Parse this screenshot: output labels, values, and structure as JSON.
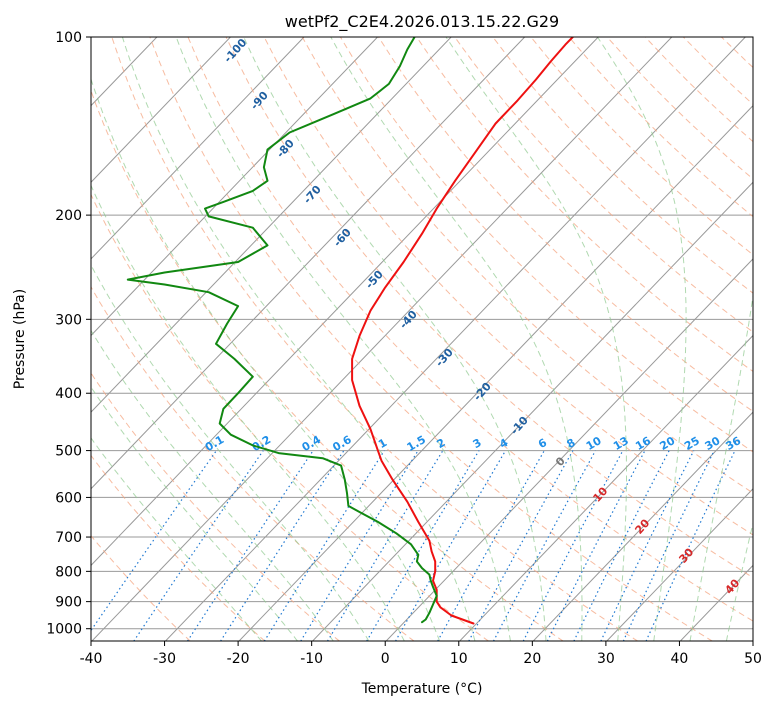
{
  "chart_data": {
    "type": "line",
    "title": "wetPf2_C2E4.2026.013.15.22.G29",
    "xlabel": "Temperature (°C)",
    "ylabel": "Pressure (hPa)",
    "x_scale": "linear",
    "y_scale": "log (inverted)",
    "xlim": [
      -40,
      50
    ],
    "ylim": [
      1050,
      100
    ],
    "grid": true,
    "x_ticks": [
      -40,
      -30,
      -20,
      -10,
      0,
      10,
      20,
      30,
      40,
      50
    ],
    "y_ticks": [
      1000,
      900,
      800,
      700,
      600,
      500,
      400,
      300,
      200,
      100
    ],
    "dry_adiabat_labels": [
      "-100",
      "-90",
      "-80",
      "-70",
      "-60",
      "-50",
      "-40",
      "-30",
      "-20",
      "-10"
    ],
    "mixing_ratio_labels": [
      "0.1",
      "0.2",
      "0.4",
      "0.6",
      "1",
      "1.5",
      "2",
      "3",
      "4",
      "6",
      "8",
      "10",
      "13",
      "16",
      "20",
      "25",
      "30",
      "36"
    ],
    "moist_adiabat_labels": [
      "0",
      "10",
      "20",
      "30",
      "40"
    ],
    "colors": {
      "temperature": "#ee1111",
      "dewpoint": "#118811",
      "isotherm": "#999999",
      "dry_adiabat": "#f4a582",
      "moist_adiabat": "#8fc98f",
      "mixing_ratio": "#1f78d1",
      "dry_label": "#1f5fa0",
      "mixing_label": "#1f8fe8",
      "moist_label_cold": "#777777",
      "moist_label_warm": "#d62728"
    },
    "series": [
      {
        "key": "temperature",
        "points": [
          [
            12.0,
            980
          ],
          [
            9.0,
            950
          ],
          [
            7.5,
            920
          ],
          [
            7.0,
            900
          ],
          [
            7.0,
            860
          ],
          [
            6.5,
            830
          ],
          [
            6.8,
            800
          ],
          [
            6.8,
            770
          ],
          [
            6.3,
            740
          ],
          [
            6.0,
            710
          ],
          [
            4.5,
            660
          ],
          [
            3.0,
            610
          ],
          [
            1.0,
            560
          ],
          [
            -0.5,
            520
          ],
          [
            -1.0,
            500
          ],
          [
            -2.0,
            460
          ],
          [
            -3.5,
            420
          ],
          [
            -4.5,
            380
          ],
          [
            -4.5,
            350
          ],
          [
            -3.5,
            320
          ],
          [
            -2.0,
            290
          ],
          [
            0.0,
            265
          ],
          [
            2.5,
            240
          ],
          [
            5.0,
            215
          ],
          [
            7.0,
            195
          ],
          [
            9.5,
            175
          ],
          [
            12.5,
            155
          ],
          [
            15.0,
            140
          ],
          [
            18.0,
            128
          ],
          [
            20.5,
            118
          ],
          [
            22.5,
            110
          ],
          [
            24.5,
            103
          ],
          [
            25.5,
            100
          ]
        ]
      },
      {
        "key": "dewpoint",
        "points": [
          [
            5.0,
            975
          ],
          [
            5.5,
            965
          ],
          [
            6.0,
            940
          ],
          [
            6.5,
            910
          ],
          [
            7.0,
            880
          ],
          [
            6.5,
            850
          ],
          [
            6.2,
            830
          ],
          [
            6.0,
            810
          ],
          [
            5.0,
            790
          ],
          [
            4.3,
            770
          ],
          [
            4.5,
            750
          ],
          [
            3.5,
            720
          ],
          [
            1.5,
            690
          ],
          [
            -1.0,
            660
          ],
          [
            -3.5,
            635
          ],
          [
            -5.0,
            620
          ],
          [
            -5.2,
            590
          ],
          [
            -5.5,
            560
          ],
          [
            -6.0,
            530
          ],
          [
            -8.5,
            515
          ],
          [
            -14.5,
            505
          ],
          [
            -18.0,
            490
          ],
          [
            -21.0,
            470
          ],
          [
            -22.5,
            450
          ],
          [
            -22.0,
            425
          ],
          [
            -20.0,
            400
          ],
          [
            -18.0,
            375
          ],
          [
            -20.5,
            350
          ],
          [
            -23.0,
            330
          ],
          [
            -21.5,
            305
          ],
          [
            -20.0,
            285
          ],
          [
            -24.0,
            270
          ],
          [
            -30.0,
            262
          ],
          [
            -35.0,
            257
          ],
          [
            -30.0,
            250
          ],
          [
            -20.0,
            240
          ],
          [
            -16.0,
            225
          ],
          [
            -18.0,
            210
          ],
          [
            -24.0,
            201
          ],
          [
            -24.5,
            195
          ],
          [
            -22.0,
            190
          ],
          [
            -18.0,
            182
          ],
          [
            -16.0,
            175
          ],
          [
            -16.5,
            166
          ],
          [
            -16.0,
            155
          ],
          [
            -13.0,
            145
          ],
          [
            -7.0,
            135
          ],
          [
            -2.0,
            127
          ],
          [
            0.5,
            120
          ],
          [
            2.0,
            112
          ],
          [
            3.0,
            105
          ],
          [
            4.0,
            100
          ]
        ]
      }
    ]
  }
}
